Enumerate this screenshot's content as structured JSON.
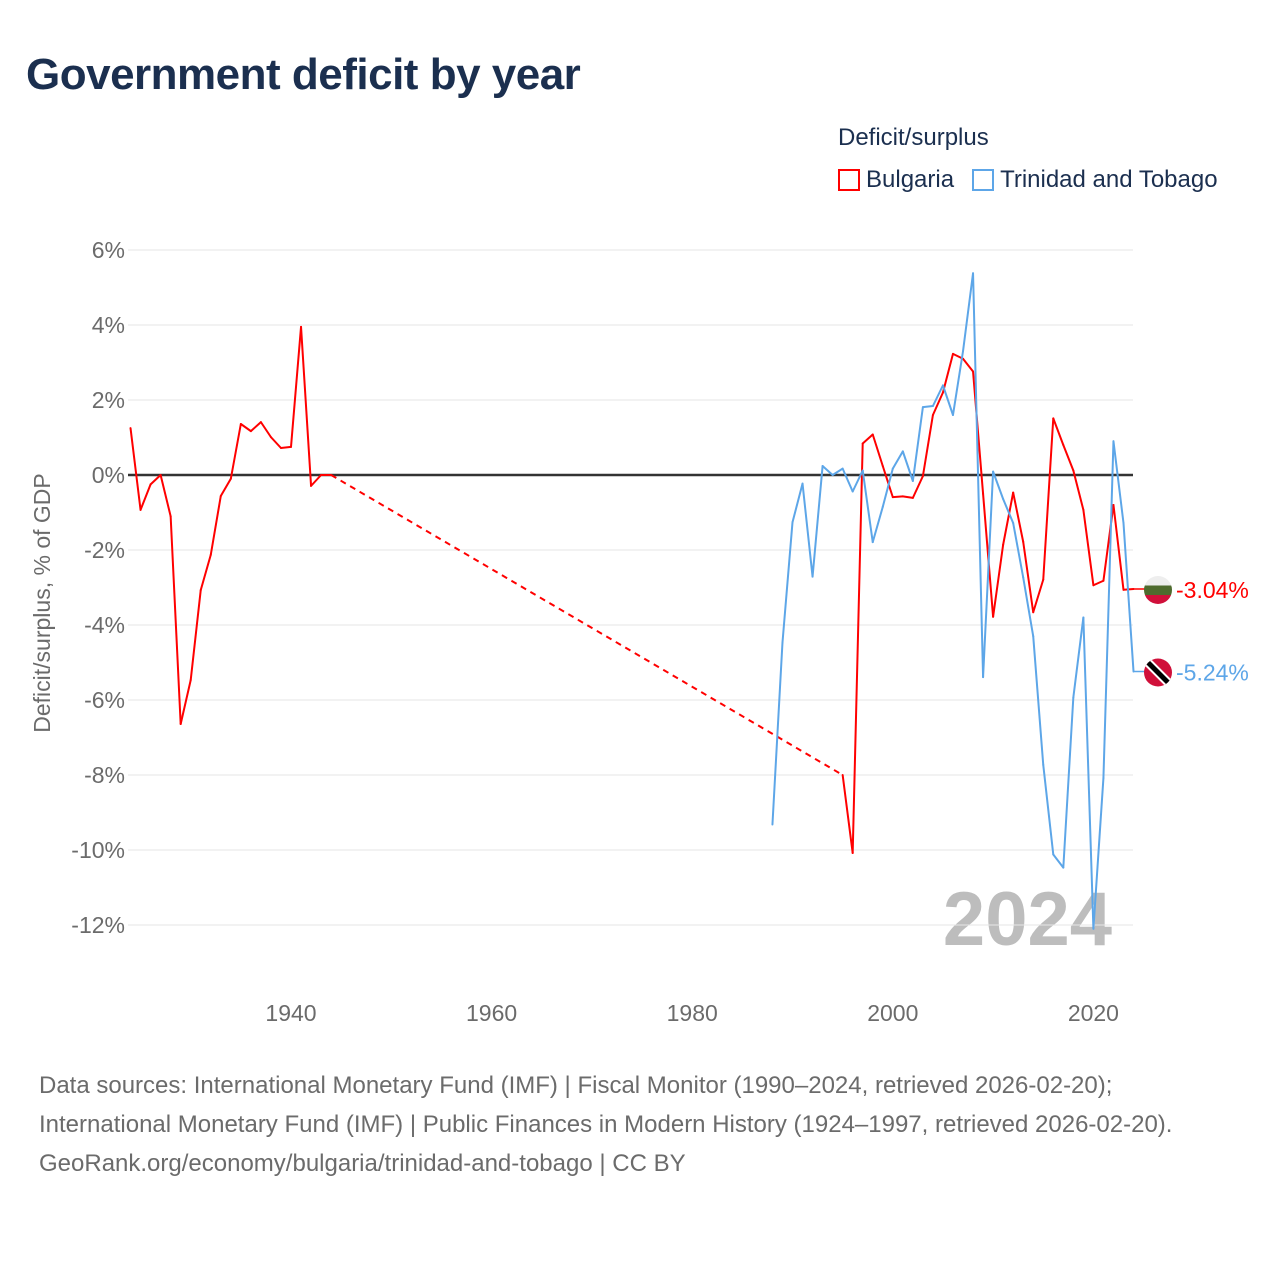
{
  "title": "Government deficit by year",
  "legend": {
    "title": "Deficit/surplus",
    "items": [
      {
        "name": "Bulgaria",
        "color": "#ff0000"
      },
      {
        "name": "Trinidad and Tobago",
        "color": "#5da6e8"
      }
    ]
  },
  "chart_data": {
    "type": "line",
    "title": "Government deficit by year",
    "ylabel": "Deficit/surplus, % of GDP",
    "xlabel": "",
    "xlim": [
      1923.8,
      2024
    ],
    "ylim": [
      -12.5,
      6
    ],
    "xticks": [
      1940,
      1960,
      1980,
      2000,
      2020
    ],
    "yticks": [
      6,
      4,
      2,
      0,
      -2,
      -4,
      -6,
      -8,
      -10,
      -12
    ],
    "ytick_labels": [
      "6%",
      "4%",
      "2%",
      "0%",
      "-2%",
      "-4%",
      "-6%",
      "-8%",
      "-10%",
      "-12%"
    ],
    "grid": true,
    "legend_position": "top-right",
    "watermark_year": "2024",
    "series": [
      {
        "name": "Bulgaria",
        "color": "#ff0000",
        "end_label": "-3.04%",
        "flag": "bulgaria",
        "x": [
          1924,
          1925,
          1926,
          1927,
          1928,
          1929,
          1930,
          1931,
          1932,
          1933,
          1934,
          1935,
          1936,
          1937,
          1938,
          1939,
          1940,
          1941,
          1942,
          1943,
          1944,
          1995,
          1996,
          1997,
          1998,
          1999,
          2000,
          2001,
          2002,
          2003,
          2004,
          2005,
          2006,
          2007,
          2008,
          2009,
          2010,
          2011,
          2012,
          2013,
          2014,
          2015,
          2016,
          2017,
          2018,
          2019,
          2020,
          2021,
          2022,
          2023,
          2024
        ],
        "y": [
          1.25,
          -0.93,
          -0.25,
          0,
          -1.1,
          -6.64,
          -5.47,
          -3.07,
          -2.13,
          -0.56,
          -0.1,
          1.36,
          1.17,
          1.41,
          1.01,
          0.72,
          0.75,
          3.95,
          -0.29,
          0,
          0,
          -8.0,
          -10.08,
          0.84,
          1.08,
          0.24,
          -0.59,
          -0.57,
          -0.61,
          -0.03,
          1.6,
          2.2,
          3.23,
          3.1,
          2.76,
          -0.5,
          -3.78,
          -1.86,
          -0.47,
          -1.78,
          -3.66,
          -2.79,
          1.51,
          0.8,
          0.12,
          -0.93,
          -2.94,
          -2.82,
          -0.8,
          -3.06,
          -3.04
        ]
      },
      {
        "name": "Trinidad and Tobago",
        "color": "#5da6e8",
        "end_label": "-5.24%",
        "flag": "trinidad-and-tobago",
        "x": [
          1988,
          1989,
          1990,
          1991,
          1992,
          1993,
          1994,
          1995,
          1996,
          1997,
          1998,
          1999,
          2000,
          2001,
          2002,
          2003,
          2004,
          2005,
          2006,
          2007,
          2008,
          2009,
          2010,
          2011,
          2012,
          2013,
          2014,
          2015,
          2016,
          2017,
          2018,
          2019,
          2020,
          2021,
          2022,
          2023,
          2024
        ],
        "y": [
          -9.32,
          -4.47,
          -1.26,
          -0.23,
          -2.71,
          0.24,
          0,
          0.17,
          -0.44,
          0.12,
          -1.79,
          -0.85,
          0.17,
          0.63,
          -0.16,
          1.81,
          1.84,
          2.39,
          1.6,
          3.3,
          5.38,
          -5.39,
          0.09,
          -0.64,
          -1.28,
          -2.73,
          -4.3,
          -7.73,
          -10.12,
          -10.47,
          -5.93,
          -3.8,
          -12.1,
          -8.08,
          0.9,
          -1.28,
          -5.24
        ]
      }
    ]
  },
  "footer": {
    "sources": "Data sources: International Monetary Fund (IMF) | Fiscal Monitor (1990–2024, retrieved 2026-02-20); International Monetary Fund (IMF) | Public Finances in Modern History (1924–1997, retrieved 2026-02-20).",
    "credit": "GeoRank.org/economy/bulgaria/trinidad-and-tobago | CC BY"
  }
}
